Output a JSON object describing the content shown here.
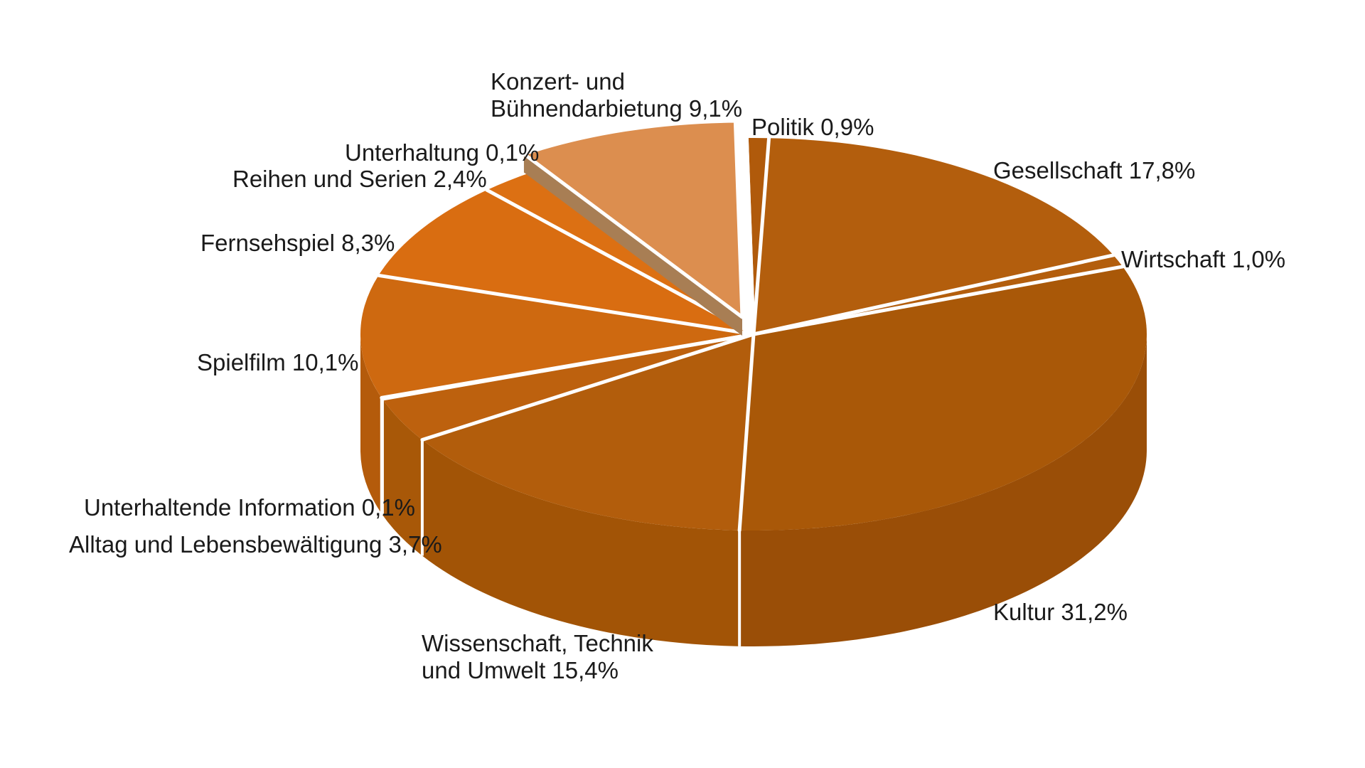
{
  "chart_data": {
    "type": "pie",
    "title": "",
    "unit": "%",
    "decimal_style": "comma",
    "legend_position": "labels-around-pie",
    "clockwise": true,
    "start_at": "12-oclock",
    "exploded_slice": "Konzert- und Bühnendarbietung",
    "slices": [
      {
        "name": "Politik",
        "value": 0.9,
        "label": "Politik  0,9%",
        "color": "#B05A0B",
        "rim": "#9D4F08",
        "exploded": false
      },
      {
        "name": "Gesellschaft",
        "value": 17.8,
        "label": "Gesellschaft 17,8%",
        "color": "#B35E0D",
        "rim": "#9D4F08",
        "exploded": false
      },
      {
        "name": "Wirtschaft",
        "value": 1.0,
        "label": "Wirtschaft 1,0%",
        "color": "#B35E0D",
        "rim": "#9D4F08",
        "exploded": false
      },
      {
        "name": "Kultur",
        "value": 31.2,
        "label": "Kultur 31,2%",
        "color": "#A95808",
        "rim": "#9A4E07",
        "exploded": false
      },
      {
        "name": "Wissenschaft, Technik und Umwelt",
        "value": 15.4,
        "label": "Wissenschaft, Technik\nund Umwelt 15,4%",
        "color": "#B25D0C",
        "rim": "#A25406",
        "exploded": false
      },
      {
        "name": "Alltag und Lebensbewältigung",
        "value": 3.7,
        "label": "Alltag und Lebensbewältigung  3,7%",
        "color": "#BD610E",
        "rim": "#A85808",
        "exploded": false
      },
      {
        "name": "Unterhaltende Information",
        "value": 0.1,
        "label": "Unterhaltende Information 0,1%",
        "color": "#C4640F",
        "rim": "#AC5A09",
        "exploded": false
      },
      {
        "name": "Spielfilm",
        "value": 10.1,
        "label": "Spielfilm 10,1%",
        "color": "#CE6910",
        "rim": "#B45B0B",
        "exploded": false
      },
      {
        "name": "Fernsehspiel",
        "value": 8.3,
        "label": "Fernsehspiel 8,3%",
        "color": "#D96D11",
        "rim": "#BB5F0C",
        "exploded": false
      },
      {
        "name": "Reihen und Serien",
        "value": 2.4,
        "label": "Reihen und Serien 2,4%",
        "color": "#DC7013",
        "rim": "#BD600C",
        "exploded": false
      },
      {
        "name": "Unterhaltung",
        "value": 0.1,
        "label": "Unterhaltung 0,1%",
        "color": "#DC7013",
        "rim": "#BD600C",
        "exploded": false
      },
      {
        "name": "Konzert- und Bühnendarbietung",
        "value": 9.1,
        "label": "Konzert- und\nBühnendarbietung  9,1%",
        "color": "#DC8E4F",
        "rim": "#A87E54",
        "exploded": true
      }
    ],
    "styling": {
      "separator_color": "#FFFFFF",
      "background_color": "#FFFFFF",
      "label_color": "#1A1A1A",
      "exploded_cut_face_color": "#A87E54"
    }
  }
}
